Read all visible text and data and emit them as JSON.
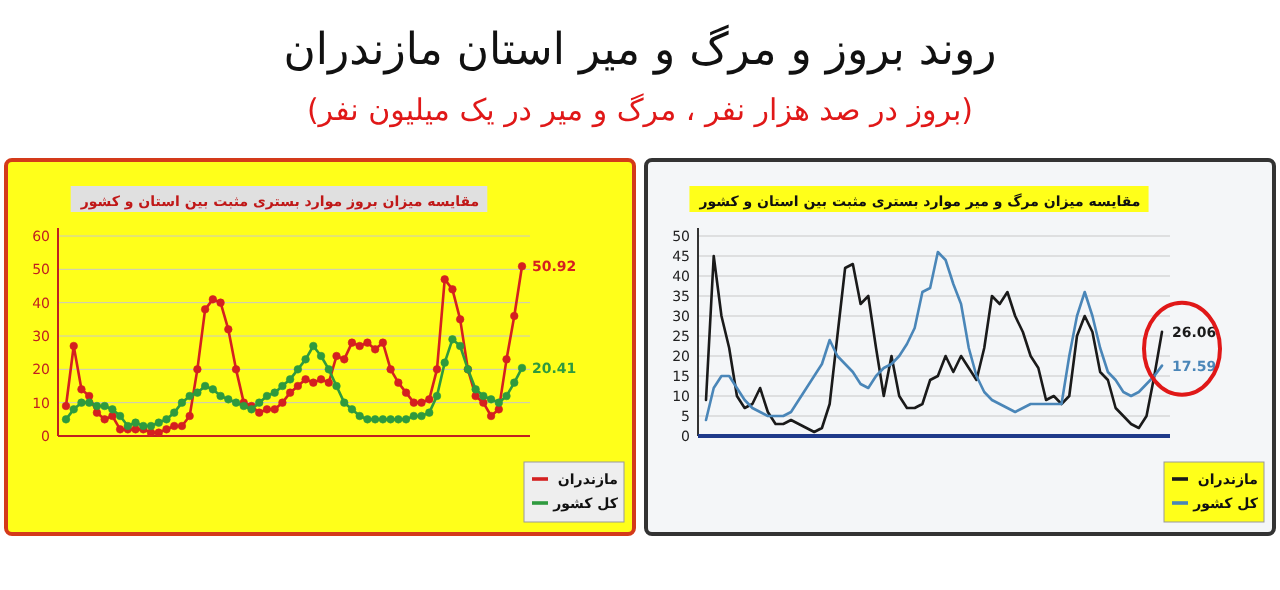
{
  "chart_data": [
    {
      "type": "line",
      "title": "روند بروز و مرگ و میر استان مازندران",
      "subtitle": "(بروز در صد هزار نفر ، مرگ و میر در یک میلیون نفر)",
      "annotations": [
        "مقایسه میزان بروز موارد بستری مثبت بین استان و کشور"
      ],
      "categories": [
        null,
        null,
        null,
        null,
        null,
        null,
        null,
        null,
        null,
        null,
        null,
        null,
        null,
        null,
        null,
        null,
        null,
        null,
        null,
        null,
        null,
        null,
        null,
        null,
        null,
        null,
        null,
        null,
        null,
        null,
        null,
        null,
        null,
        null,
        null,
        null,
        null,
        null,
        null,
        null,
        null,
        null,
        null,
        null,
        null,
        null,
        null,
        null,
        null,
        null,
        null,
        null,
        null,
        null,
        null,
        null,
        null,
        null,
        null,
        null
      ],
      "series": [
        {
          "name": "مازندران",
          "color": "#d42020",
          "values": [
            9,
            27,
            14,
            12,
            7,
            5,
            6,
            2,
            2,
            2,
            2,
            1,
            1,
            2,
            3,
            3,
            6,
            20,
            38,
            41,
            40,
            32,
            20,
            10,
            9,
            7,
            8,
            8,
            10,
            13,
            15,
            17,
            16,
            17,
            16,
            24,
            23,
            28,
            27,
            28,
            26,
            28,
            20,
            16,
            13,
            10,
            10,
            11,
            20,
            47,
            44,
            35,
            20,
            12,
            10,
            6,
            8,
            23,
            36,
            50.92
          ],
          "value_labels": [
            null,
            null,
            null,
            null,
            null,
            null,
            null,
            null,
            null,
            null,
            null,
            null,
            null,
            null,
            null,
            null,
            null,
            null,
            null,
            null,
            null,
            null,
            null,
            null,
            null,
            null,
            null,
            null,
            null,
            null,
            null,
            null,
            null,
            null,
            null,
            null,
            null,
            null,
            null,
            null,
            null,
            null,
            null,
            null,
            null,
            null,
            null,
            null,
            null,
            null,
            null,
            null,
            null,
            null,
            null,
            null,
            null,
            null,
            null,
            "50.92"
          ]
        },
        {
          "name": "کل کشور",
          "color": "#2e9a3e",
          "values": [
            5,
            8,
            10,
            10,
            9,
            9,
            8,
            6,
            3,
            4,
            3,
            3,
            4,
            5,
            7,
            10,
            12,
            13,
            15,
            14,
            12,
            11,
            10,
            9,
            8,
            10,
            12,
            13,
            15,
            17,
            20,
            23,
            27,
            24,
            20,
            15,
            10,
            8,
            6,
            5,
            5,
            5,
            5,
            5,
            5,
            6,
            6,
            7,
            12,
            22,
            29,
            27,
            20,
            14,
            12,
            11,
            10,
            12,
            16,
            20.41
          ],
          "value_labels": [
            null,
            null,
            null,
            null,
            null,
            null,
            null,
            null,
            null,
            null,
            null,
            null,
            null,
            null,
            null,
            null,
            null,
            null,
            null,
            null,
            null,
            null,
            null,
            null,
            null,
            null,
            null,
            null,
            null,
            null,
            null,
            null,
            null,
            null,
            null,
            null,
            null,
            null,
            null,
            null,
            null,
            null,
            null,
            null,
            null,
            null,
            null,
            null,
            null,
            null,
            null,
            null,
            null,
            null,
            null,
            null,
            null,
            null,
            null,
            "20.41"
          ]
        }
      ],
      "ylim": [
        0,
        60
      ],
      "yticks": [
        0,
        10,
        20,
        30,
        40,
        50,
        60
      ],
      "grid": "y",
      "legend": "bottom right",
      "marker": "circle"
    },
    {
      "type": "line",
      "title": "مقایسه میزان مرگ و میر موارد بستری مثبت بین استان و کشور",
      "categories": [
        null,
        null,
        null,
        null,
        null,
        null,
        null,
        null,
        null,
        null,
        null,
        null,
        null,
        null,
        null,
        null,
        null,
        null,
        null,
        null,
        null,
        null,
        null,
        null,
        null,
        null,
        null,
        null,
        null,
        null,
        null,
        null,
        null,
        null,
        null,
        null,
        null,
        null,
        null,
        null,
        null,
        null,
        null,
        null,
        null,
        null,
        null,
        null,
        null,
        null,
        null,
        null,
        null,
        null,
        null,
        null,
        null,
        null,
        null,
        null
      ],
      "series": [
        {
          "name": "مازندران",
          "color": "#1a1a1a",
          "values": [
            9,
            45,
            30,
            22,
            10,
            7,
            8,
            12,
            6,
            3,
            3,
            4,
            3,
            2,
            1,
            2,
            8,
            25,
            42,
            43,
            33,
            35,
            22,
            10,
            20,
            10,
            7,
            7,
            8,
            14,
            15,
            20,
            16,
            20,
            17,
            14,
            22,
            35,
            33,
            36,
            30,
            26,
            20,
            17,
            9,
            10,
            8,
            10,
            25,
            30,
            26,
            16,
            14,
            7,
            5,
            3,
            2,
            5,
            15,
            26.06
          ],
          "value_labels": [
            null,
            null,
            null,
            null,
            null,
            null,
            null,
            null,
            null,
            null,
            null,
            null,
            null,
            null,
            null,
            null,
            null,
            null,
            null,
            null,
            null,
            null,
            null,
            null,
            null,
            null,
            null,
            null,
            null,
            null,
            null,
            null,
            null,
            null,
            null,
            null,
            null,
            null,
            null,
            null,
            null,
            null,
            null,
            null,
            null,
            null,
            null,
            null,
            null,
            null,
            null,
            null,
            null,
            null,
            null,
            null,
            null,
            null,
            null,
            "26.06"
          ]
        },
        {
          "name": "کل کشور",
          "color": "#4a86b8",
          "values": [
            4,
            12,
            15,
            15,
            12,
            9,
            7,
            6,
            5,
            5,
            5,
            6,
            9,
            12,
            15,
            18,
            24,
            20,
            18,
            16,
            13,
            12,
            15,
            17,
            18,
            20,
            23,
            27,
            36,
            37,
            46,
            44,
            38,
            33,
            22,
            15,
            11,
            9,
            8,
            7,
            6,
            7,
            8,
            8,
            8,
            8,
            8,
            20,
            30,
            36,
            30,
            22,
            16,
            14,
            11,
            10,
            11,
            13,
            15,
            17.59
          ],
          "value_labels": [
            null,
            null,
            null,
            null,
            null,
            null,
            null,
            null,
            null,
            null,
            null,
            null,
            null,
            null,
            null,
            null,
            null,
            null,
            null,
            null,
            null,
            null,
            null,
            null,
            null,
            null,
            null,
            null,
            null,
            null,
            null,
            null,
            null,
            null,
            null,
            null,
            null,
            null,
            null,
            null,
            null,
            null,
            null,
            null,
            null,
            null,
            null,
            null,
            null,
            null,
            null,
            null,
            null,
            null,
            null,
            null,
            null,
            null,
            null,
            "17.59"
          ]
        }
      ],
      "ylim": [
        0,
        50
      ],
      "yticks": [
        0,
        5,
        10,
        15,
        20,
        25,
        30,
        35,
        40,
        45,
        50
      ],
      "grid": "y",
      "legend": "bottom right"
    }
  ]
}
